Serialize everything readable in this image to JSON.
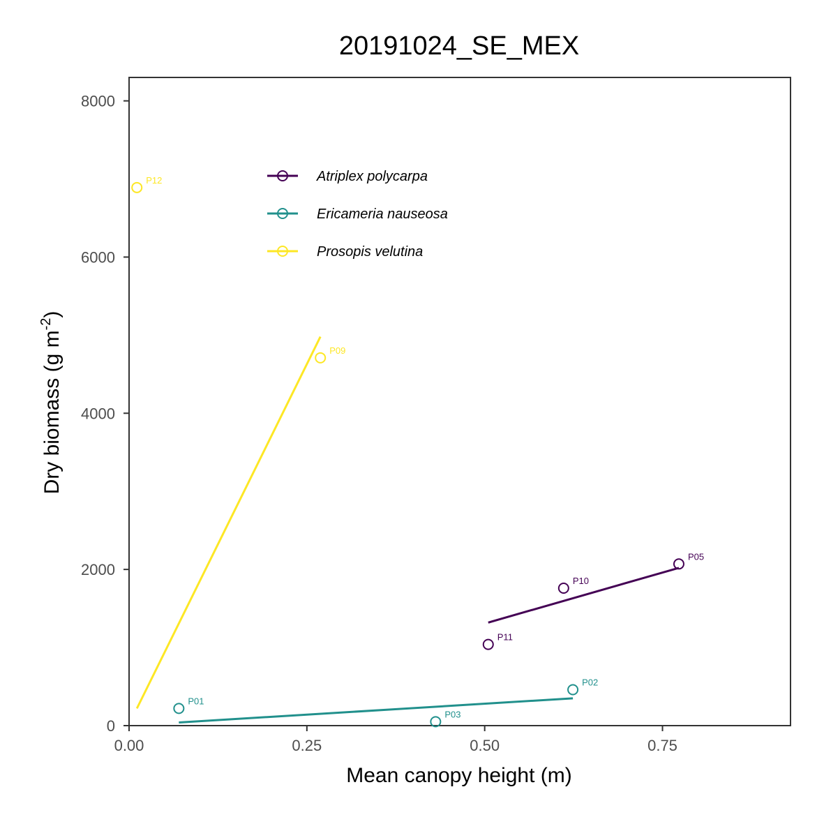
{
  "chart_data": {
    "type": "scatter",
    "title": "20191024_SE_MEX",
    "xlabel": "Mean canopy height (m)",
    "ylabel": "Dry biomass (g m",
    "ylabel_superscript": "-2",
    "ylabel_suffix": ")",
    "xlim": [
      0,
      0.93
    ],
    "ylim": [
      0,
      8300
    ],
    "x_ticks": [
      0.0,
      0.25,
      0.5,
      0.75
    ],
    "x_tick_labels": [
      "0.00",
      "0.25",
      "0.50",
      "0.75"
    ],
    "y_ticks": [
      0,
      2000,
      4000,
      6000,
      8000
    ],
    "y_tick_labels": [
      "0",
      "2000",
      "4000",
      "6000",
      "8000"
    ],
    "grid": false,
    "legend_position": "top-left-inside",
    "series": [
      {
        "name": "Atriplex polycarpa",
        "color": "#440154",
        "points": [
          {
            "label": "P05",
            "x": 0.773,
            "y": 2070
          },
          {
            "label": "P10",
            "x": 0.611,
            "y": 1760
          },
          {
            "label": "P11",
            "x": 0.505,
            "y": 1040
          }
        ],
        "fit": {
          "x": [
            0.505,
            0.773
          ],
          "y": [
            1320,
            2020
          ]
        }
      },
      {
        "name": "Ericameria nauseosa",
        "color": "#21908C",
        "points": [
          {
            "label": "P01",
            "x": 0.07,
            "y": 220
          },
          {
            "label": "P02",
            "x": 0.624,
            "y": 460
          },
          {
            "label": "P03",
            "x": 0.431,
            "y": 50
          }
        ],
        "fit": {
          "x": [
            0.07,
            0.624
          ],
          "y": [
            40,
            350
          ]
        }
      },
      {
        "name": "Prosopis velutina",
        "color": "#FDE725",
        "points": [
          {
            "label": "P12",
            "x": 0.011,
            "y": 6890
          },
          {
            "label": "P09",
            "x": 0.269,
            "y": 4710
          }
        ],
        "fit": {
          "x": [
            0.011,
            0.269
          ],
          "y": [
            220,
            4980
          ]
        }
      }
    ]
  }
}
